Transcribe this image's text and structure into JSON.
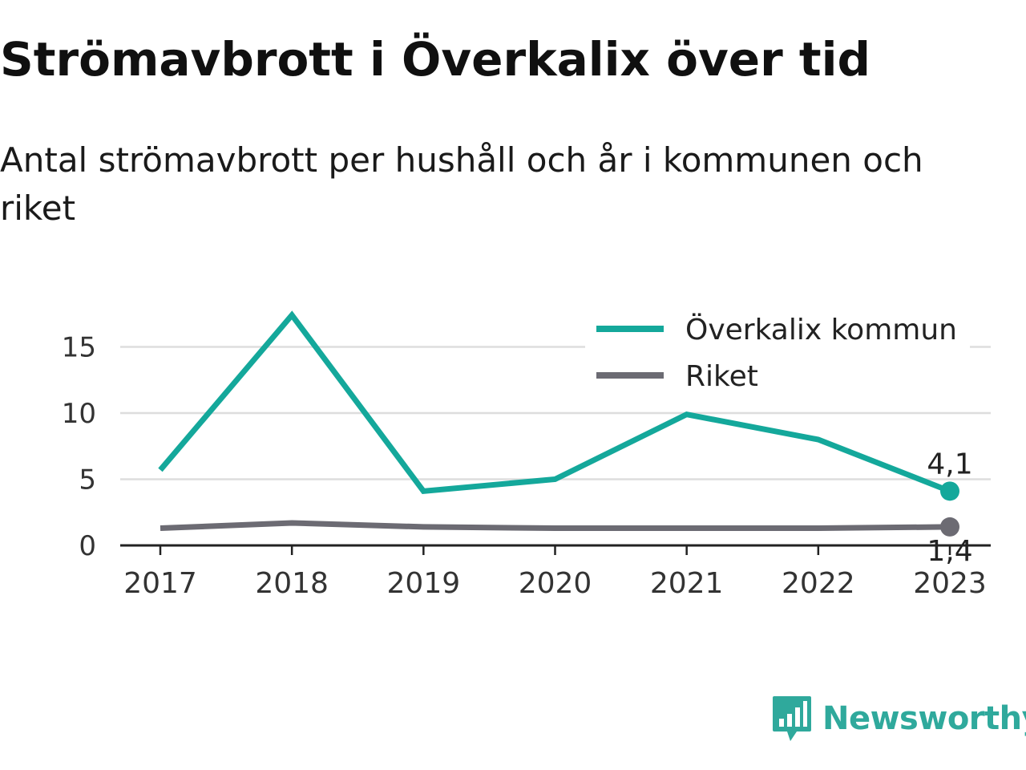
{
  "title": "Strömavbrott i Överkalix över tid",
  "subtitle": "Antal strömavbrott per hushåll och år i kommunen och riket",
  "brand": {
    "name": "Newsworthy",
    "icon": "newsworthy-chart-bubble-icon",
    "color": "#2fa99c"
  },
  "chart_data": {
    "type": "line",
    "x": [
      "2017",
      "2018",
      "2019",
      "2020",
      "2021",
      "2022",
      "2023"
    ],
    "ylim": [
      0,
      18
    ],
    "yticks": [
      0,
      5,
      10,
      15
    ],
    "grid": true,
    "legend": "top-right",
    "series": [
      {
        "name": "Överkalix kommun",
        "color": "#14a89b",
        "values": [
          5.7,
          17.4,
          4.1,
          5.0,
          9.9,
          8.0,
          4.1
        ],
        "end_label": "4,1"
      },
      {
        "name": "Riket",
        "color": "#6c6b73",
        "values": [
          1.3,
          1.7,
          1.4,
          1.3,
          1.3,
          1.3,
          1.4
        ],
        "end_label": "1,4"
      }
    ]
  }
}
